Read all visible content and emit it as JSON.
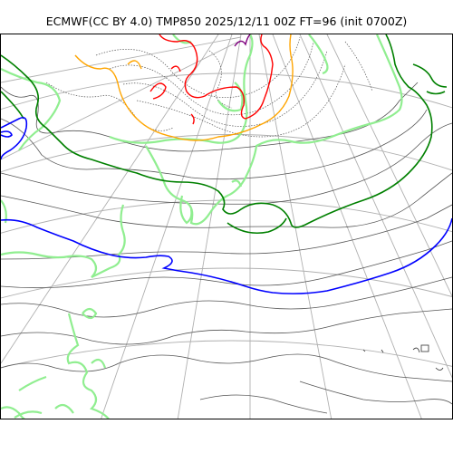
{
  "title": "ECMWF(CC BY 4.0) TMP850 2025/12/11 00Z FT=96 (init 0700Z)",
  "colors": {
    "grid": "#b0b0b0",
    "coast": "#90ee90",
    "isotherm_gray": "#555555",
    "isotherm_dotted": "#555555",
    "contour_green": "#008000",
    "contour_blue": "#0000ff",
    "contour_orange": "#ffa500",
    "contour_red": "#ff0000",
    "contour_purple": "#800080"
  }
}
